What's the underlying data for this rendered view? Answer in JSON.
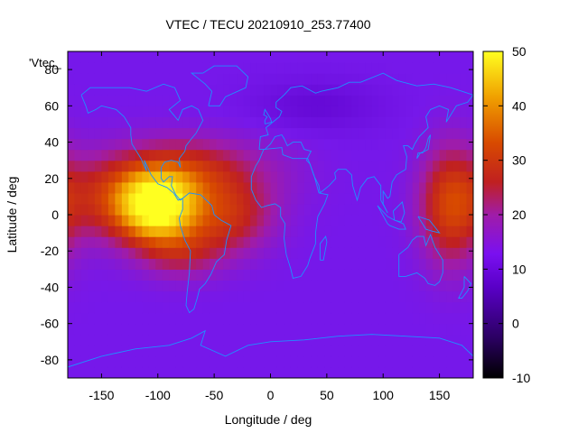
{
  "chart_data": {
    "type": "heatmap",
    "title": "VTEC / TECU 20210910_253.77400",
    "xlabel": "Longitude / deg",
    "ylabel": "Latitude / deg",
    "series_label": "'Vtec_",
    "xlim": [
      -180,
      180
    ],
    "ylim": [
      -90,
      90
    ],
    "x_ticks": [
      -150,
      -100,
      -50,
      0,
      50,
      100,
      150
    ],
    "y_ticks": [
      -80,
      -60,
      -40,
      -20,
      0,
      20,
      40,
      60,
      80
    ],
    "colorbar": {
      "min": -10,
      "max": 50,
      "ticks": [
        -10,
        0,
        10,
        20,
        30,
        40,
        50
      ]
    },
    "overlay": "coastlines",
    "features": [
      {
        "name": "equatorial-anomaly-americas",
        "lon": -100,
        "lat": 5,
        "value": 48
      },
      {
        "name": "equatorial-band-atlantic",
        "lon": -40,
        "lat": 0,
        "value": 24
      },
      {
        "name": "equatorial-band-pacific-west",
        "lon": 160,
        "lat": 5,
        "value": 26
      },
      {
        "name": "background",
        "value": 12
      },
      {
        "name": "north-europe-low",
        "lon": 40,
        "lat": 60,
        "value": 9
      }
    ]
  },
  "colors": {
    "coast": "#1e90ff",
    "axis": "#000000",
    "background": "#ffffff"
  }
}
